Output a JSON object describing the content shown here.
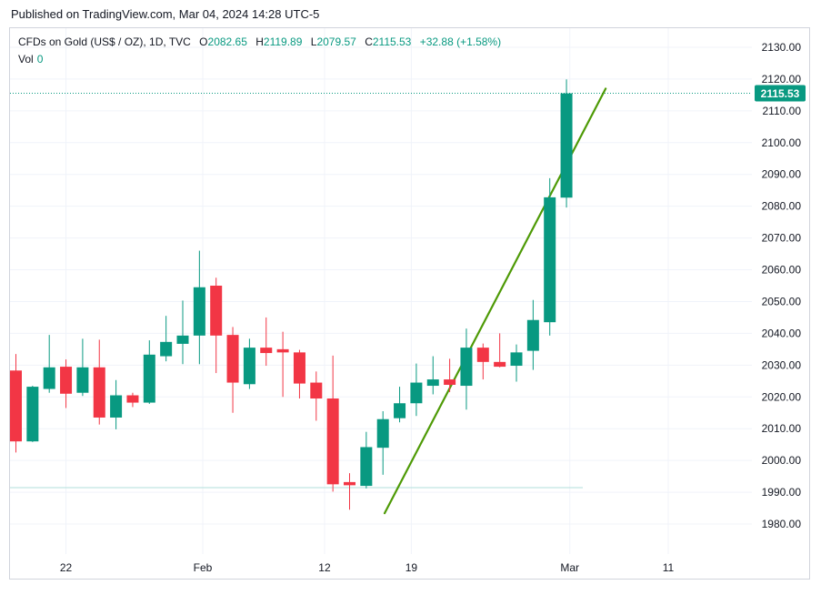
{
  "header": {
    "published": "Published on TradingView.com, Mar 04, 2024 14:28 UTC-5"
  },
  "legend": {
    "symbol": "CFDs on Gold (US$ / OZ), 1D, TVC",
    "open_label": "O",
    "open": "2082.65",
    "high_label": "H",
    "high": "2119.89",
    "low_label": "L",
    "low": "2079.57",
    "close_label": "C",
    "close": "2115.53",
    "change": "+32.88 (+1.58%)",
    "vol_label": "Vol",
    "vol_value": "0"
  },
  "price_tag": "2115.53",
  "colors": {
    "up": "#089981",
    "down": "#f23645",
    "trendline": "#4e9a06",
    "grid": "#f0f3fa",
    "last_price_line": "#089981"
  },
  "chart_data": {
    "type": "candlestick",
    "title": "",
    "ylim": [
      1972,
      2135
    ],
    "y_ticks": [
      "1980.00",
      "1990.00",
      "2000.00",
      "2010.00",
      "2020.00",
      "2030.00",
      "2040.00",
      "2050.00",
      "2060.00",
      "2070.00",
      "2080.00",
      "2090.00",
      "2100.00",
      "2110.00",
      "2120.00",
      "2130.00"
    ],
    "x_ticks": [
      "22",
      "Feb",
      "12",
      "19",
      "Mar",
      "11"
    ],
    "last_price": 2115.53,
    "candles": [
      {
        "o": 2028.3,
        "h": 2033.5,
        "l": 2002.5,
        "c": 2006.0
      },
      {
        "o": 2006.0,
        "h": 2023.5,
        "l": 2005.8,
        "c": 2023.2
      },
      {
        "o": 2022.5,
        "h": 2039.5,
        "l": 2021.3,
        "c": 2029.3
      },
      {
        "o": 2029.5,
        "h": 2031.8,
        "l": 2016.5,
        "c": 2021.0
      },
      {
        "o": 2021.3,
        "h": 2038.3,
        "l": 2020.3,
        "c": 2029.3
      },
      {
        "o": 2029.3,
        "h": 2038.0,
        "l": 2011.3,
        "c": 2013.5
      },
      {
        "o": 2013.5,
        "h": 2025.3,
        "l": 2009.8,
        "c": 2020.5
      },
      {
        "o": 2020.5,
        "h": 2021.3,
        "l": 2016.8,
        "c": 2018.2
      },
      {
        "o": 2018.2,
        "h": 2037.8,
        "l": 2017.8,
        "c": 2033.3
      },
      {
        "o": 2032.8,
        "h": 2045.5,
        "l": 2031.2,
        "c": 2037.3
      },
      {
        "o": 2036.7,
        "h": 2050.3,
        "l": 2030.3,
        "c": 2039.3
      },
      {
        "o": 2039.3,
        "h": 2066.0,
        "l": 2030.3,
        "c": 2054.5
      },
      {
        "o": 2055.0,
        "h": 2057.5,
        "l": 2027.5,
        "c": 2039.3
      },
      {
        "o": 2039.5,
        "h": 2042.0,
        "l": 2015.0,
        "c": 2024.5
      },
      {
        "o": 2024.0,
        "h": 2038.3,
        "l": 2022.5,
        "c": 2035.5
      },
      {
        "o": 2035.5,
        "h": 2045.0,
        "l": 2029.8,
        "c": 2033.8
      },
      {
        "o": 2035.0,
        "h": 2040.5,
        "l": 2020.0,
        "c": 2034.0
      },
      {
        "o": 2034.0,
        "h": 2034.8,
        "l": 2019.5,
        "c": 2024.2
      },
      {
        "o": 2024.5,
        "h": 2028.0,
        "l": 2012.5,
        "c": 2019.5
      },
      {
        "o": 2019.5,
        "h": 2033.0,
        "l": 1990.2,
        "c": 1992.5
      },
      {
        "o": 1993.2,
        "h": 1996.0,
        "l": 1984.5,
        "c": 1992.2
      },
      {
        "o": 1992.0,
        "h": 2009.0,
        "l": 1991.2,
        "c": 2004.2
      },
      {
        "o": 2004.0,
        "h": 2015.5,
        "l": 1995.5,
        "c": 2013.0
      },
      {
        "o": 2013.3,
        "h": 2023.2,
        "l": 2012.0,
        "c": 2018.0
      },
      {
        "o": 2018.0,
        "h": 2030.5,
        "l": 2014.0,
        "c": 2024.5
      },
      {
        "o": 2023.5,
        "h": 2032.8,
        "l": 2020.8,
        "c": 2025.5
      },
      {
        "o": 2025.5,
        "h": 2032.0,
        "l": 2021.5,
        "c": 2023.8
      },
      {
        "o": 2023.5,
        "h": 2041.5,
        "l": 2016.0,
        "c": 2035.5
      },
      {
        "o": 2035.5,
        "h": 2036.8,
        "l": 2025.5,
        "c": 2031.0
      },
      {
        "o": 2031.0,
        "h": 2040.0,
        "l": 2029.3,
        "c": 2029.5
      },
      {
        "o": 2029.8,
        "h": 2036.5,
        "l": 2024.8,
        "c": 2034.0
      },
      {
        "o": 2034.5,
        "h": 2050.5,
        "l": 2028.5,
        "c": 2044.2
      },
      {
        "o": 2043.5,
        "h": 2088.8,
        "l": 2039.3,
        "c": 2082.8
      },
      {
        "o": 2082.7,
        "h": 2119.9,
        "l": 2079.6,
        "c": 2115.5
      }
    ],
    "trendline": [
      {
        "bar": 22.1,
        "price": 1983.4
      },
      {
        "bar": 35.35,
        "price": 2117.0
      }
    ]
  }
}
